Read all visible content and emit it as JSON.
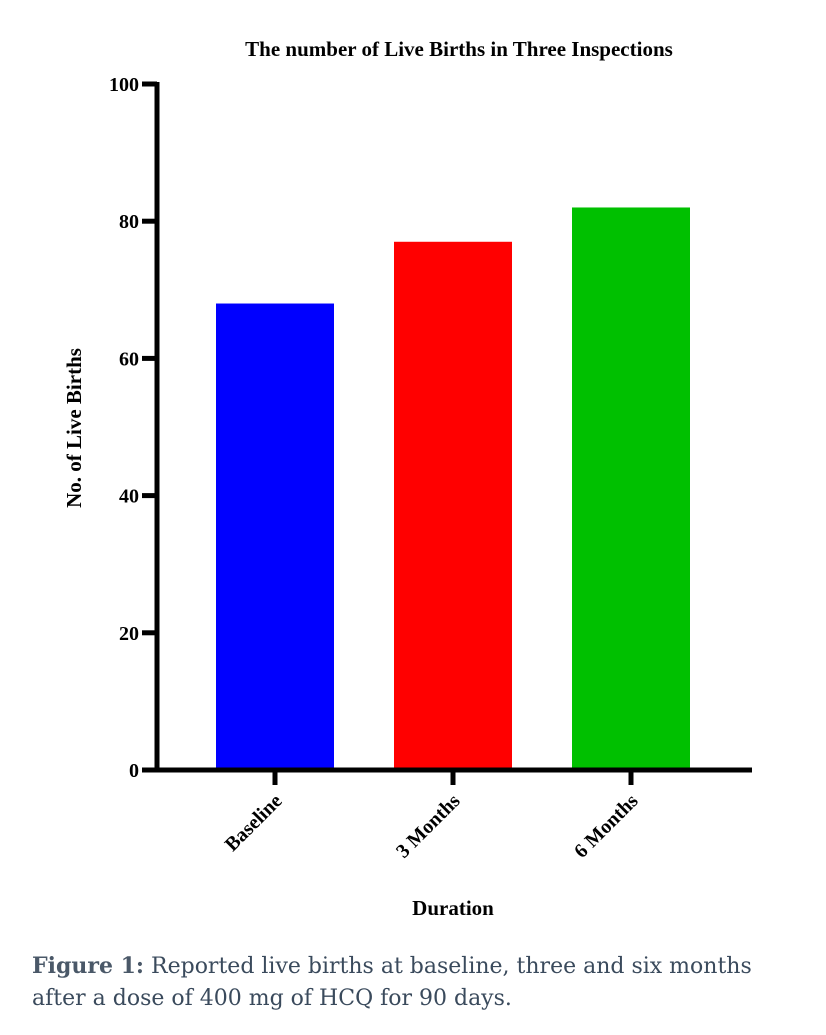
{
  "chart_data": {
    "type": "bar",
    "title": "The number of Live Births in Three Inspections",
    "xlabel": "Duration",
    "ylabel": "No. of Live Births",
    "categories": [
      "Baseline",
      "3 Months",
      "6 Months"
    ],
    "values": [
      68,
      77,
      82
    ],
    "colors": [
      "#0000ff",
      "#ff0000",
      "#00c000"
    ],
    "ylim": [
      0,
      100
    ],
    "yticks": [
      0,
      20,
      40,
      60,
      80,
      100
    ],
    "grid": false,
    "legend": "none"
  },
  "caption": {
    "lead": "Figure 1:",
    "text": " Reported live births at baseline, three and six months after a dose of 400 mg of HCQ for 90 days."
  }
}
